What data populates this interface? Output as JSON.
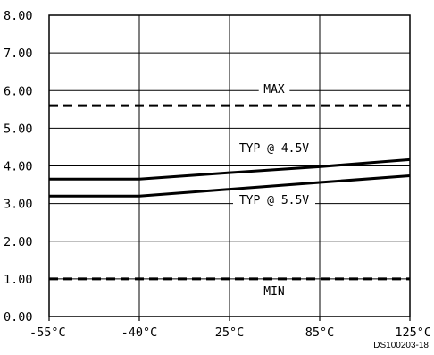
{
  "chart_data": {
    "type": "line",
    "categories": [
      "-55°C",
      "-40°C",
      "25°C",
      "85°C",
      "125°C"
    ],
    "ylim": [
      0,
      8
    ],
    "yticks": [
      "0.00",
      "1.00",
      "2.00",
      "3.00",
      "4.00",
      "5.00",
      "6.00",
      "7.00",
      "8.00"
    ],
    "grid": true,
    "series": [
      {
        "name": "MAX",
        "style": "dashed",
        "values": [
          5.6,
          5.6,
          5.6,
          5.6,
          5.6
        ]
      },
      {
        "name": "TYP @ 4.5V",
        "style": "solid",
        "values": [
          3.65,
          3.65,
          3.82,
          3.98,
          4.17
        ]
      },
      {
        "name": "TYP @ 5.5V",
        "style": "solid",
        "values": [
          3.2,
          3.2,
          3.38,
          3.56,
          3.74
        ]
      },
      {
        "name": "MIN",
        "style": "dashed",
        "values": [
          1.0,
          1.0,
          1.0,
          1.0,
          1.0
        ]
      }
    ],
    "annotations": [
      "MAX",
      "TYP @ 4.5V",
      "TYP @ 5.5V",
      "MIN"
    ],
    "figure_code": "DS100203-18"
  }
}
